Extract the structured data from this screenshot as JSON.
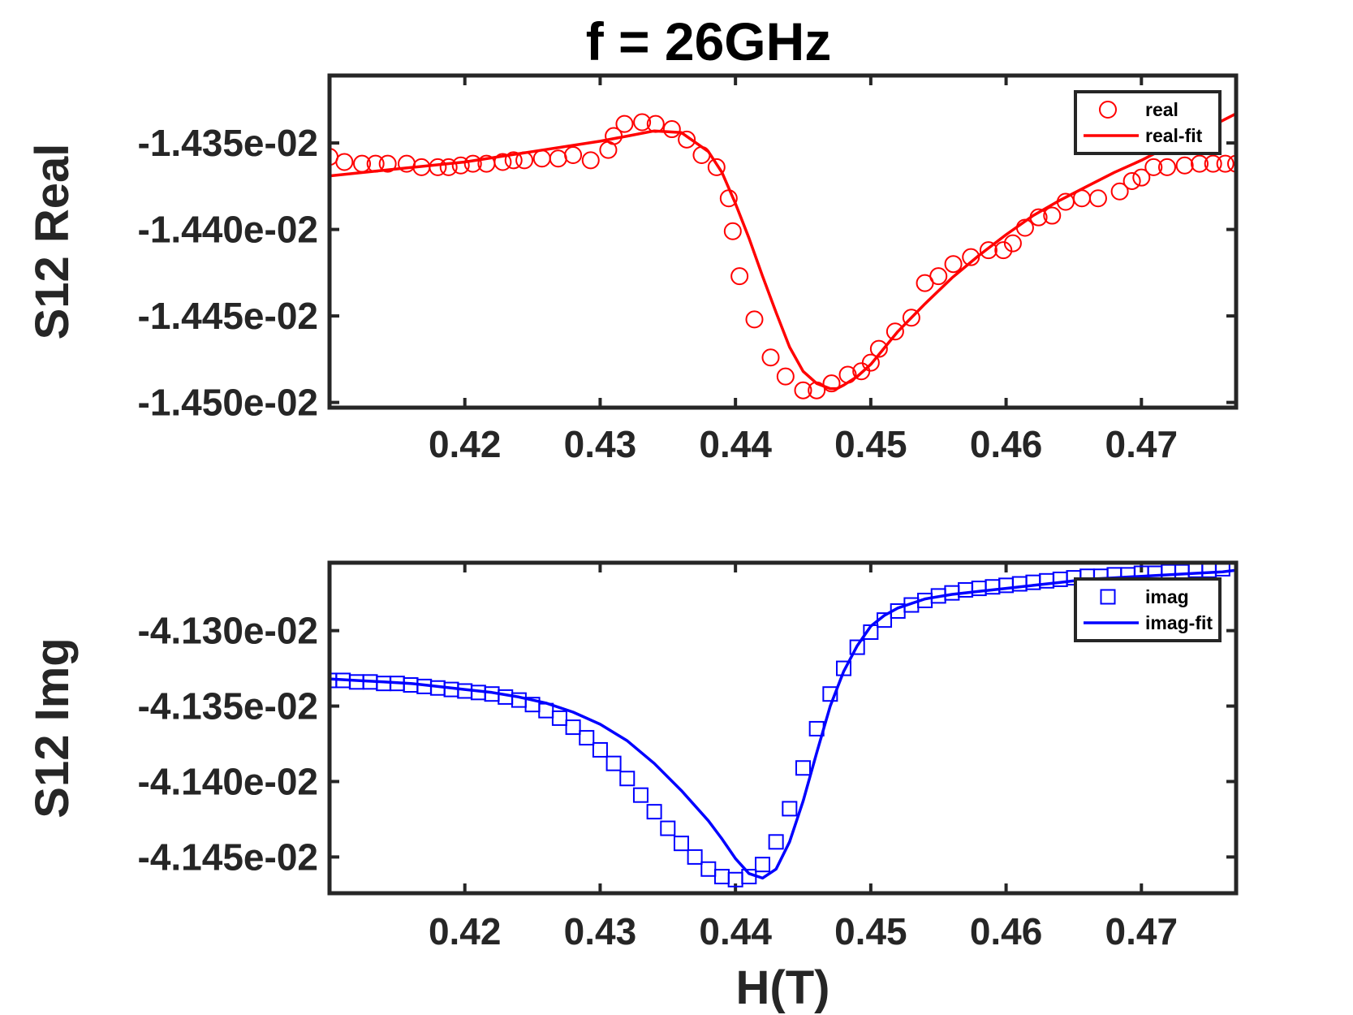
{
  "figure": {
    "title": "f = 26GHz"
  },
  "chart_data": [
    {
      "type": "scatter",
      "title": "",
      "xlabel": "",
      "ylabel": "S12 Real",
      "xlim": [
        0.41,
        0.477
      ],
      "ylim": [
        -0.014503,
        -0.014311
      ],
      "xticks": [
        0.42,
        0.43,
        0.44,
        0.45,
        0.46,
        0.47
      ],
      "xtick_labels": [
        "0.42",
        "0.43",
        "0.44",
        "0.45",
        "0.46",
        "0.47"
      ],
      "yticks": [
        -0.01435,
        -0.0144,
        -0.01445,
        -0.0145
      ],
      "ytick_labels": [
        "-1.435e-02",
        "-1.440e-02",
        "-1.445e-02",
        "-1.450e-02"
      ],
      "grid": false,
      "legend_position": "top-right",
      "series": [
        {
          "name": "real",
          "kind": "markers",
          "marker": "circle",
          "color": "#ff0000",
          "x": [
            0.41,
            0.4111,
            0.4124,
            0.4134,
            0.4143,
            0.4157,
            0.4168,
            0.418,
            0.4188,
            0.4197,
            0.4206,
            0.4216,
            0.4228,
            0.4236,
            0.4244,
            0.4257,
            0.4269,
            0.428,
            0.4293,
            0.4306,
            0.431,
            0.4318,
            0.4331,
            0.4341,
            0.4353,
            0.4364,
            0.4375,
            0.4386,
            0.4395,
            0.4398,
            0.4403,
            0.4414,
            0.4426,
            0.4437,
            0.445,
            0.446,
            0.4471,
            0.4483,
            0.4493,
            0.45,
            0.4506,
            0.4518,
            0.453,
            0.454,
            0.455,
            0.4561,
            0.4574,
            0.4587,
            0.4598,
            0.4605,
            0.4614,
            0.4624,
            0.4634,
            0.4644,
            0.4656,
            0.4668,
            0.4684,
            0.4693,
            0.47,
            0.4709,
            0.4719,
            0.4732,
            0.4743,
            0.4753,
            0.4762,
            0.477
          ],
          "y": [
            -0.014358,
            -0.014361,
            -0.014362,
            -0.014362,
            -0.014362,
            -0.014362,
            -0.014364,
            -0.014364,
            -0.014364,
            -0.014363,
            -0.014362,
            -0.014362,
            -0.014361,
            -0.01436,
            -0.01436,
            -0.014359,
            -0.014359,
            -0.014357,
            -0.01436,
            -0.014354,
            -0.014346,
            -0.014339,
            -0.014338,
            -0.014339,
            -0.014342,
            -0.014348,
            -0.014357,
            -0.014364,
            -0.014382,
            -0.014401,
            -0.014427,
            -0.014452,
            -0.014474,
            -0.014485,
            -0.014493,
            -0.014493,
            -0.014489,
            -0.014484,
            -0.014482,
            -0.014477,
            -0.014469,
            -0.014459,
            -0.014451,
            -0.014431,
            -0.014427,
            -0.01442,
            -0.014416,
            -0.014412,
            -0.014412,
            -0.014408,
            -0.014399,
            -0.014393,
            -0.014392,
            -0.014384,
            -0.014382,
            -0.014382,
            -0.014378,
            -0.014372,
            -0.01437,
            -0.014364,
            -0.014364,
            -0.014363,
            -0.014362,
            -0.014362,
            -0.014362,
            -0.014362
          ]
        },
        {
          "name": "real-fit",
          "kind": "line",
          "color": "#ff0000",
          "x": [
            0.41,
            0.415,
            0.42,
            0.425,
            0.43,
            0.432,
            0.434,
            0.436,
            0.438,
            0.439,
            0.44,
            0.441,
            0.442,
            0.443,
            0.444,
            0.445,
            0.446,
            0.447,
            0.4475,
            0.448,
            0.449,
            0.45,
            0.452,
            0.454,
            0.456,
            0.458,
            0.46,
            0.462,
            0.464,
            0.466,
            0.468,
            0.47,
            0.472,
            0.474,
            0.476,
            0.477
          ],
          "y": [
            -0.014369,
            -0.014365,
            -0.014361,
            -0.014355,
            -0.014349,
            -0.014346,
            -0.014343,
            -0.014344,
            -0.014355,
            -0.014367,
            -0.014385,
            -0.014405,
            -0.014427,
            -0.014448,
            -0.014468,
            -0.014482,
            -0.014489,
            -0.014492,
            -0.014492,
            -0.01449,
            -0.014485,
            -0.014478,
            -0.014459,
            -0.014443,
            -0.014428,
            -0.014415,
            -0.014403,
            -0.014392,
            -0.014383,
            -0.014375,
            -0.014367,
            -0.01436,
            -0.014352,
            -0.014345,
            -0.014337,
            -0.014333
          ]
        }
      ]
    },
    {
      "type": "scatter",
      "title": "",
      "xlabel": "H(T)",
      "ylabel": "S12 Img",
      "xlim": [
        0.41,
        0.477
      ],
      "ylim": [
        -0.041474,
        -0.041255
      ],
      "xticks": [
        0.42,
        0.43,
        0.44,
        0.45,
        0.46,
        0.47
      ],
      "xtick_labels": [
        "0.42",
        "0.43",
        "0.44",
        "0.45",
        "0.46",
        "0.47"
      ],
      "yticks": [
        -0.0413,
        -0.04135,
        -0.0414,
        -0.04145
      ],
      "ytick_labels": [
        "-4.130e-02",
        "-4.135e-02",
        "-4.140e-02",
        "-4.145e-02"
      ],
      "grid": false,
      "legend_position": "top-right",
      "series": [
        {
          "name": "imag",
          "kind": "markers",
          "marker": "square",
          "color": "#0000ff",
          "x": [
            0.41,
            0.411,
            0.412,
            0.413,
            0.414,
            0.415,
            0.416,
            0.417,
            0.418,
            0.419,
            0.42,
            0.421,
            0.422,
            0.423,
            0.424,
            0.425,
            0.426,
            0.427,
            0.428,
            0.429,
            0.43,
            0.431,
            0.432,
            0.433,
            0.434,
            0.435,
            0.436,
            0.437,
            0.438,
            0.439,
            0.44,
            0.441,
            0.442,
            0.443,
            0.444,
            0.445,
            0.446,
            0.447,
            0.448,
            0.449,
            0.45,
            0.451,
            0.452,
            0.453,
            0.454,
            0.455,
            0.456,
            0.457,
            0.458,
            0.459,
            0.46,
            0.461,
            0.462,
            0.463,
            0.464,
            0.465,
            0.466,
            0.467,
            0.468,
            0.469,
            0.47,
            0.471,
            0.472,
            0.473,
            0.474,
            0.475,
            0.476
          ],
          "y": [
            -0.041333,
            -0.041333,
            -0.041334,
            -0.041334,
            -0.041335,
            -0.041335,
            -0.041336,
            -0.041337,
            -0.041338,
            -0.041339,
            -0.04134,
            -0.041341,
            -0.041342,
            -0.041344,
            -0.041346,
            -0.041349,
            -0.041353,
            -0.041358,
            -0.041364,
            -0.041371,
            -0.041379,
            -0.041388,
            -0.041398,
            -0.041409,
            -0.04142,
            -0.041431,
            -0.041441,
            -0.04145,
            -0.041458,
            -0.041463,
            -0.041465,
            -0.041463,
            -0.041455,
            -0.04144,
            -0.041418,
            -0.041391,
            -0.041365,
            -0.041342,
            -0.041325,
            -0.041311,
            -0.041301,
            -0.041293,
            -0.041287,
            -0.041283,
            -0.04128,
            -0.041277,
            -0.041275,
            -0.041273,
            -0.041272,
            -0.041271,
            -0.04127,
            -0.041269,
            -0.041268,
            -0.041267,
            -0.041266,
            -0.041265,
            -0.041264,
            -0.041264,
            -0.041263,
            -0.041263,
            -0.041262,
            -0.041262,
            -0.041261,
            -0.041261,
            -0.04126,
            -0.04126,
            -0.041259
          ]
        },
        {
          "name": "imag-fit",
          "kind": "line",
          "color": "#0000ff",
          "x": [
            0.41,
            0.412,
            0.414,
            0.416,
            0.418,
            0.42,
            0.422,
            0.424,
            0.426,
            0.428,
            0.43,
            0.432,
            0.434,
            0.436,
            0.438,
            0.439,
            0.44,
            0.441,
            0.442,
            0.443,
            0.444,
            0.445,
            0.446,
            0.447,
            0.448,
            0.449,
            0.45,
            0.451,
            0.452,
            0.454,
            0.456,
            0.458,
            0.46,
            0.462,
            0.464,
            0.466,
            0.468,
            0.47,
            0.472,
            0.474,
            0.476,
            0.477
          ],
          "y": [
            -0.041332,
            -0.041333,
            -0.041334,
            -0.041335,
            -0.041337,
            -0.041339,
            -0.041341,
            -0.041344,
            -0.041348,
            -0.041354,
            -0.041362,
            -0.041373,
            -0.041388,
            -0.041406,
            -0.041426,
            -0.041438,
            -0.041451,
            -0.041461,
            -0.041464,
            -0.041458,
            -0.04144,
            -0.041413,
            -0.041381,
            -0.04135,
            -0.041327,
            -0.04131,
            -0.041297,
            -0.04129,
            -0.041285,
            -0.041279,
            -0.041276,
            -0.041274,
            -0.041272,
            -0.04127,
            -0.041268,
            -0.041266,
            -0.041265,
            -0.041264,
            -0.041263,
            -0.041262,
            -0.041261,
            -0.04126
          ]
        }
      ]
    }
  ]
}
